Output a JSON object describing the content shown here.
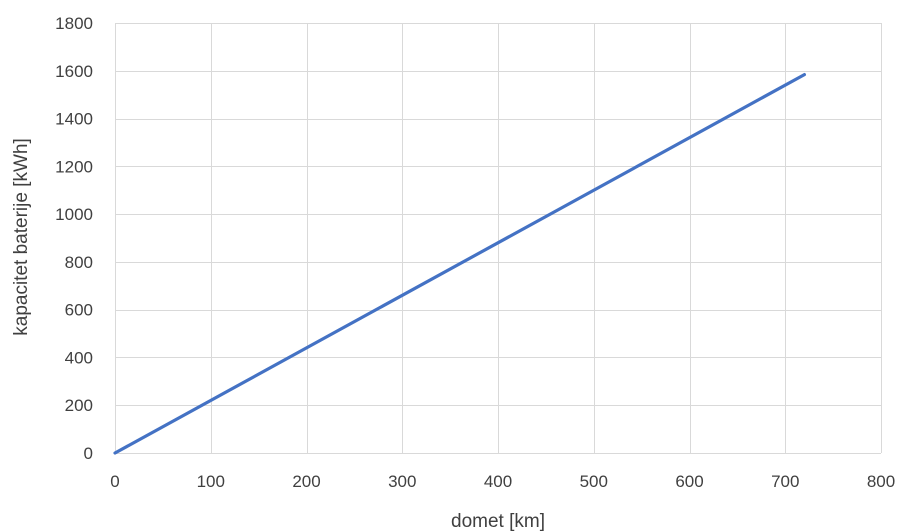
{
  "chart_data": {
    "type": "line",
    "title": "",
    "xlabel": "domet [km]",
    "ylabel": "kapacitet baterije [kWh]",
    "xlim": [
      0,
      800
    ],
    "ylim": [
      0,
      1800
    ],
    "xticks": [
      0,
      100,
      200,
      300,
      400,
      500,
      600,
      700,
      800
    ],
    "yticks": [
      0,
      200,
      400,
      600,
      800,
      1000,
      1200,
      1400,
      1600,
      1800
    ],
    "grid": true,
    "legend": "none",
    "series": [
      {
        "color": "#4472c4",
        "x": [
          0,
          720
        ],
        "y": [
          0,
          1584
        ]
      }
    ]
  }
}
